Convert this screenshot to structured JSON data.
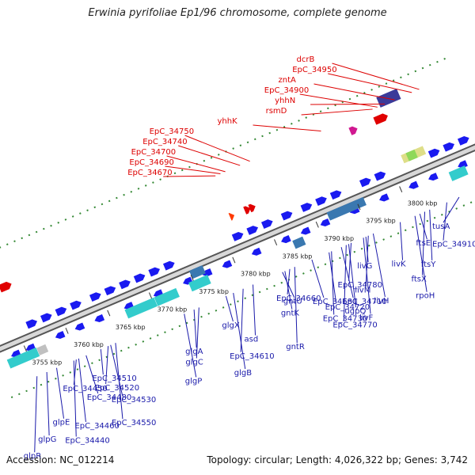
{
  "title": "Erwinia pyrifoliae Ep1/96 chromosome, complete genome",
  "accession": "Accession: NC_012214",
  "summary": "Topology: circular; Length: 4,026,322 bp; Genes: 3,742",
  "colors": {
    "gene_label_top": "#dd0000",
    "gene_label_bottom": "#1a1aaa",
    "forward_feature": "#e00000",
    "reverse_feature": "#1a1af0",
    "backbone": "#888888",
    "tick": "#338833",
    "rna": "#33cccc",
    "operon": "#3a78b0"
  },
  "ruler": {
    "labels": [
      {
        "text": "3755 kbp",
        "pos": 0.06
      },
      {
        "text": "3760 kbp",
        "pos": 0.145
      },
      {
        "text": "3765 kbp",
        "pos": 0.23
      },
      {
        "text": "3770 kbp",
        "pos": 0.315
      },
      {
        "text": "3775 kbp",
        "pos": 0.4
      },
      {
        "text": "3780 kbp",
        "pos": 0.485
      },
      {
        "text": "3785 kbp",
        "pos": 0.57
      },
      {
        "text": "3790 kbp",
        "pos": 0.655
      },
      {
        "text": "3795 kbp",
        "pos": 0.74
      },
      {
        "text": "3800 kbp",
        "pos": 0.825
      }
    ]
  },
  "top_labels": [
    {
      "text": "dcrB",
      "pos": 0.93
    },
    {
      "text": "EpC_34950",
      "pos": 0.915
    },
    {
      "text": "zntA",
      "pos": 0.88
    },
    {
      "text": "EpC_34900",
      "pos": 0.845
    },
    {
      "text": "yhhN",
      "pos": 0.86
    },
    {
      "text": "rsmD",
      "pos": 0.835
    },
    {
      "text": "yhhK",
      "pos": 0.73
    },
    {
      "text": "EpC_34750",
      "pos": 0.585
    },
    {
      "text": "EpC_34740",
      "pos": 0.565
    },
    {
      "text": "EpC_34700",
      "pos": 0.535
    },
    {
      "text": "EpC_34690",
      "pos": 0.525
    },
    {
      "text": "EpC_34670",
      "pos": 0.515
    }
  ],
  "bottom_labels": [
    {
      "text": "tusA",
      "pos": 0.92
    },
    {
      "text": "EpC_34910",
      "pos": 0.895
    },
    {
      "text": "ftsY",
      "pos": 0.86
    },
    {
      "text": "ftsX",
      "pos": 0.85
    },
    {
      "text": "rpoH",
      "pos": 0.83
    },
    {
      "text": "ftsE",
      "pos": 0.84
    },
    {
      "text": "livK",
      "pos": 0.8
    },
    {
      "text": "livM",
      "pos": 0.735
    },
    {
      "text": "livH",
      "pos": 0.745
    },
    {
      "text": "livF",
      "pos": 0.725
    },
    {
      "text": "livG",
      "pos": 0.73
    },
    {
      "text": "EpC_34780",
      "pos": 0.7
    },
    {
      "text": "EpC_34710",
      "pos": 0.68
    },
    {
      "text": "ugpQ",
      "pos": 0.695
    },
    {
      "text": "gntR",
      "pos": 0.585
    },
    {
      "text": "EpC_34660",
      "pos": 0.575
    },
    {
      "text": "EpC_34680",
      "pos": 0.62
    },
    {
      "text": "EpC_34720",
      "pos": 0.655
    },
    {
      "text": "EpC_34730",
      "pos": 0.66
    },
    {
      "text": "EpC_34770",
      "pos": 0.69
    },
    {
      "text": "gntU",
      "pos": 0.56
    },
    {
      "text": "gntK",
      "pos": 0.565
    },
    {
      "text": "asd",
      "pos": 0.5
    },
    {
      "text": "EpC_34610",
      "pos": 0.48
    },
    {
      "text": "glgB",
      "pos": 0.46
    },
    {
      "text": "glgX",
      "pos": 0.445
    },
    {
      "text": "glgA",
      "pos": 0.38
    },
    {
      "text": "glgC",
      "pos": 0.39
    },
    {
      "text": "glgP",
      "pos": 0.36
    },
    {
      "text": "EpC_34550",
      "pos": 0.22
    },
    {
      "text": "EpC_34510",
      "pos": 0.19
    },
    {
      "text": "EpC_34520",
      "pos": 0.205
    },
    {
      "text": "EpC_34530",
      "pos": 0.21
    },
    {
      "text": "EpC_34460",
      "pos": 0.145
    },
    {
      "text": "EpC_34440",
      "pos": 0.135
    },
    {
      "text": "EpC_34450",
      "pos": 0.14
    },
    {
      "text": "EpC_34480",
      "pos": 0.16
    },
    {
      "text": "glpE",
      "pos": 0.1
    },
    {
      "text": "glpG",
      "pos": 0.08
    },
    {
      "text": "glpR",
      "pos": 0.06
    }
  ]
}
